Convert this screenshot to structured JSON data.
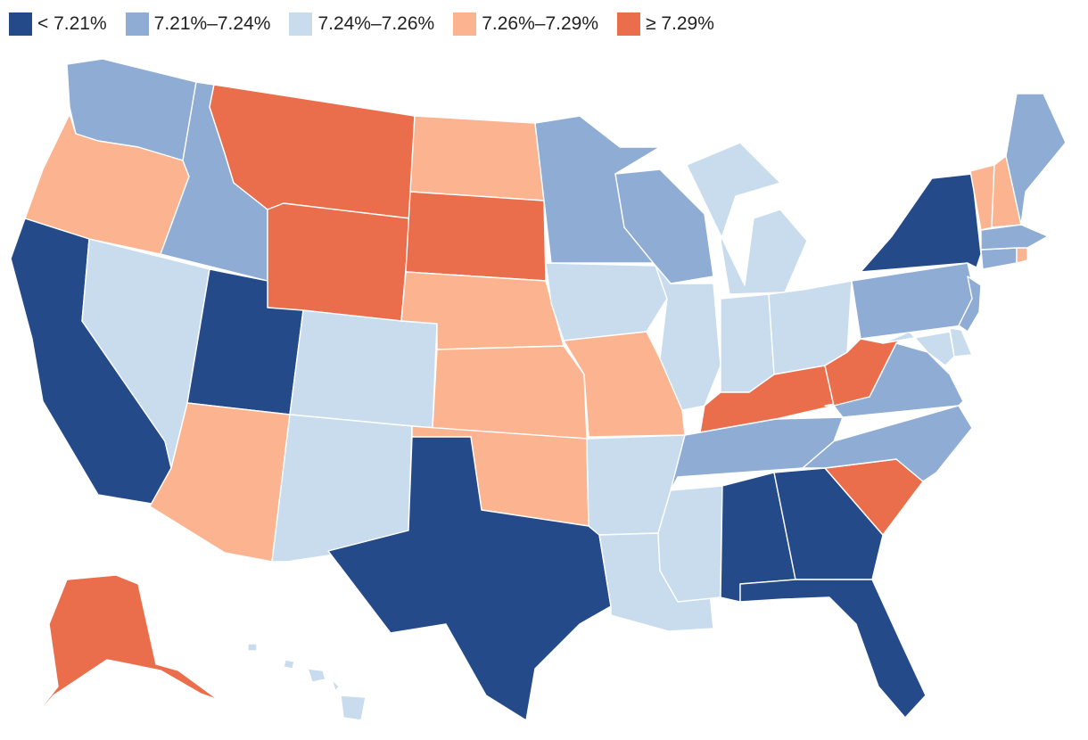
{
  "legend": [
    {
      "label": "< 7.21%",
      "color": "#244a8a"
    },
    {
      "label": "7.21%–7.24%",
      "color": "#8eacd4"
    },
    {
      "label": "7.24%–7.26%",
      "color": "#c8dcee"
    },
    {
      "label": "7.26%–7.29%",
      "color": "#fbb48f"
    },
    {
      "label": "≥ 7.29%",
      "color": "#ea6e4b"
    }
  ],
  "states": {
    "WA": 1,
    "OR": 3,
    "CA": 0,
    "NV": 2,
    "ID": 1,
    "MT": 4,
    "WY": 4,
    "UT": 0,
    "AZ": 3,
    "CO": 2,
    "NM": 2,
    "ND": 3,
    "SD": 4,
    "NE": 3,
    "KS": 3,
    "OK": 3,
    "TX": 0,
    "MN": 1,
    "IA": 2,
    "MO": 3,
    "AR": 2,
    "LA": 2,
    "WI": 1,
    "IL": 2,
    "MI": 2,
    "IN": 2,
    "OH": 2,
    "KY": 4,
    "TN": 1,
    "MS": 2,
    "AL": 0,
    "GA": 0,
    "FL": 0,
    "SC": 4,
    "NC": 1,
    "VA": 1,
    "WV": 4,
    "MD": 2,
    "DE": 2,
    "NJ": 1,
    "PA": 1,
    "NY": 0,
    "CT": 1,
    "RI": 3,
    "MA": 1,
    "VT": 3,
    "NH": 3,
    "ME": 1,
    "AK": 4,
    "HI": 2
  }
}
